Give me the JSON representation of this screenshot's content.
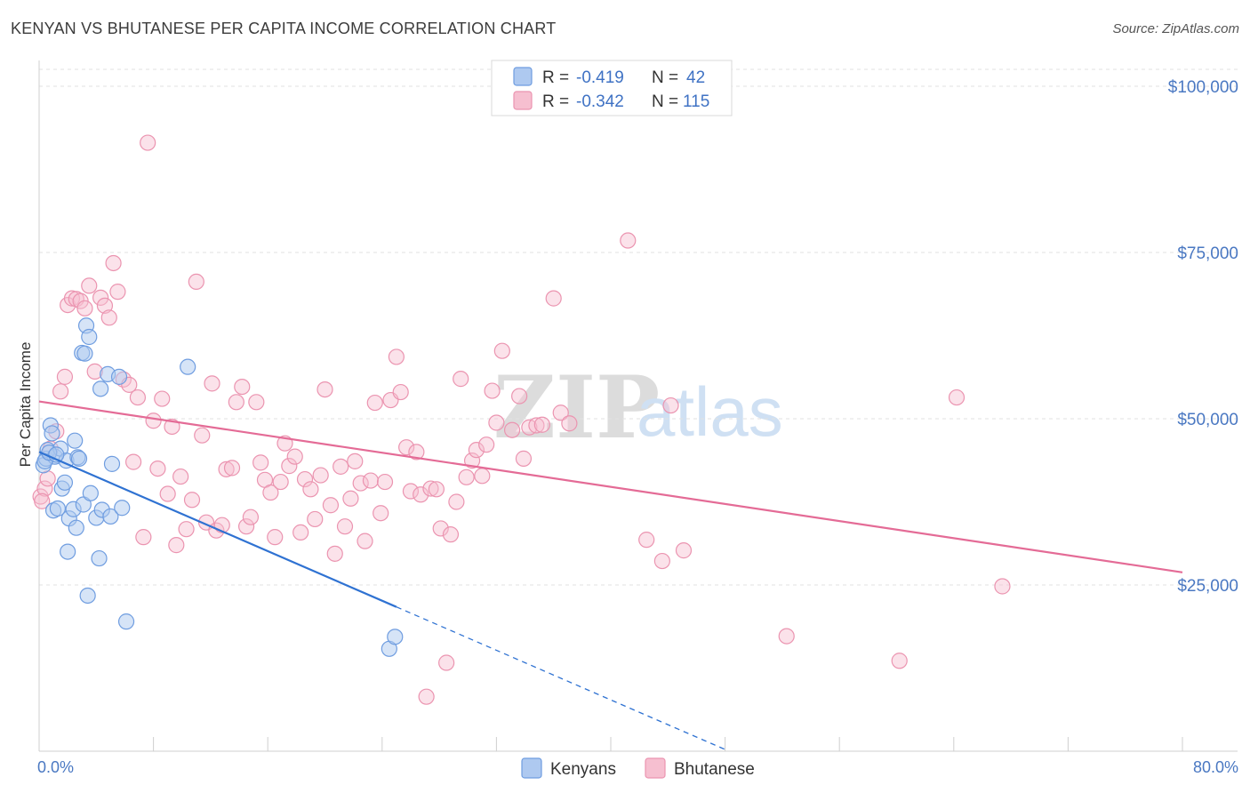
{
  "title": "KENYAN VS BHUTANESE PER CAPITA INCOME CORRELATION CHART",
  "source": "Source: ZipAtlas.com",
  "colors": {
    "kenyans_fill": "#aec9f0",
    "kenyans_stroke": "#6f9de0",
    "kenyans_line": "#2f72d2",
    "bhutanese_fill": "#f6bfd0",
    "bhutanese_stroke": "#eb94b0",
    "bhutanese_line": "#e46b96",
    "tick_text": "#4a78c2"
  },
  "legend": {
    "r_label": "R =",
    "n_label": "N =",
    "kenyans": {
      "r": "-0.419",
      "n": "42"
    },
    "bhutanese": {
      "r": "-0.342",
      "n": "115"
    }
  },
  "bottom_legend": [
    "Kenyans",
    "Bhutanese"
  ],
  "watermark": {
    "zip": "ZIP",
    "atlas": "atlas"
  },
  "chart_data": {
    "type": "scatter",
    "title": "KENYAN VS BHUTANESE PER CAPITA INCOME CORRELATION CHART",
    "xlabel": "",
    "ylabel": "Per Capita Income",
    "xlim": [
      0,
      80
    ],
    "ylim": [
      0,
      105000
    ],
    "x_tick_labels": [
      "0.0%",
      "80.0%"
    ],
    "y_ticks": [
      25000,
      50000,
      75000,
      100000
    ],
    "y_tick_labels": [
      "$25,000",
      "$50,000",
      "$75,000",
      "$100,000"
    ],
    "grid": true,
    "series": [
      {
        "name": "Kenyans",
        "trend": {
          "x0": 0,
          "y0": 45000,
          "x1": 25,
          "y1": 21700,
          "dash_to_x": 48
        },
        "points": [
          [
            0.3,
            43000
          ],
          [
            0.5,
            44000
          ],
          [
            0.6,
            45300
          ],
          [
            0.8,
            49000
          ],
          [
            0.9,
            47800
          ],
          [
            1.0,
            36200
          ],
          [
            1.1,
            44300
          ],
          [
            1.3,
            36500
          ],
          [
            1.5,
            45500
          ],
          [
            1.6,
            39500
          ],
          [
            1.8,
            40400
          ],
          [
            1.9,
            43700
          ],
          [
            2.0,
            30000
          ],
          [
            2.1,
            35000
          ],
          [
            2.4,
            36400
          ],
          [
            2.5,
            46700
          ],
          [
            2.6,
            33600
          ],
          [
            2.7,
            44200
          ],
          [
            2.8,
            44000
          ],
          [
            3.0,
            59900
          ],
          [
            3.1,
            37100
          ],
          [
            3.2,
            59800
          ],
          [
            3.3,
            64000
          ],
          [
            3.4,
            23400
          ],
          [
            3.5,
            62300
          ],
          [
            3.6,
            38800
          ],
          [
            4.0,
            35100
          ],
          [
            4.2,
            29000
          ],
          [
            4.3,
            54500
          ],
          [
            4.4,
            36300
          ],
          [
            4.8,
            56700
          ],
          [
            5.0,
            35300
          ],
          [
            5.1,
            43200
          ],
          [
            5.6,
            56300
          ],
          [
            5.8,
            36600
          ],
          [
            6.1,
            19500
          ],
          [
            10.4,
            57800
          ],
          [
            24.5,
            15400
          ],
          [
            24.9,
            17200
          ],
          [
            0.4,
            43600
          ],
          [
            0.7,
            44900
          ],
          [
            1.2,
            44600
          ]
        ]
      },
      {
        "name": "Bhutanese",
        "trend": {
          "x0": 0,
          "y0": 52600,
          "x1": 80,
          "y1": 26900
        },
        "points": [
          [
            0.1,
            38300
          ],
          [
            0.4,
            39500
          ],
          [
            0.8,
            45500
          ],
          [
            1.2,
            48100
          ],
          [
            1.5,
            54100
          ],
          [
            1.8,
            56300
          ],
          [
            2.0,
            67100
          ],
          [
            2.3,
            68100
          ],
          [
            2.6,
            68000
          ],
          [
            2.9,
            67700
          ],
          [
            3.2,
            66600
          ],
          [
            3.5,
            70000
          ],
          [
            3.9,
            57100
          ],
          [
            4.3,
            68200
          ],
          [
            4.6,
            67000
          ],
          [
            4.9,
            65200
          ],
          [
            5.2,
            73400
          ],
          [
            5.5,
            69100
          ],
          [
            5.9,
            55900
          ],
          [
            6.3,
            55100
          ],
          [
            6.6,
            43500
          ],
          [
            6.9,
            53200
          ],
          [
            7.3,
            32200
          ],
          [
            7.6,
            91500
          ],
          [
            8.0,
            49700
          ],
          [
            8.3,
            42500
          ],
          [
            8.6,
            53000
          ],
          [
            9.0,
            38700
          ],
          [
            9.3,
            48800
          ],
          [
            9.6,
            31000
          ],
          [
            9.9,
            41300
          ],
          [
            10.3,
            33400
          ],
          [
            10.7,
            37800
          ],
          [
            11.0,
            70600
          ],
          [
            11.4,
            47500
          ],
          [
            11.7,
            34400
          ],
          [
            12.1,
            55300
          ],
          [
            12.4,
            33200
          ],
          [
            12.8,
            34000
          ],
          [
            13.1,
            42400
          ],
          [
            13.5,
            42600
          ],
          [
            13.8,
            52500
          ],
          [
            14.2,
            54800
          ],
          [
            14.5,
            33800
          ],
          [
            14.8,
            35200
          ],
          [
            15.2,
            52500
          ],
          [
            15.5,
            43400
          ],
          [
            15.8,
            40800
          ],
          [
            16.2,
            38900
          ],
          [
            16.5,
            32200
          ],
          [
            16.9,
            40500
          ],
          [
            17.2,
            46300
          ],
          [
            17.5,
            42900
          ],
          [
            17.9,
            44300
          ],
          [
            18.3,
            32900
          ],
          [
            18.6,
            40900
          ],
          [
            19.0,
            39400
          ],
          [
            19.3,
            34900
          ],
          [
            19.7,
            41500
          ],
          [
            20.0,
            54400
          ],
          [
            20.4,
            37000
          ],
          [
            20.7,
            29700
          ],
          [
            21.1,
            42800
          ],
          [
            21.4,
            33800
          ],
          [
            21.8,
            38000
          ],
          [
            22.1,
            43600
          ],
          [
            22.5,
            40300
          ],
          [
            22.8,
            31600
          ],
          [
            23.2,
            40700
          ],
          [
            23.5,
            52400
          ],
          [
            23.9,
            35800
          ],
          [
            24.2,
            40500
          ],
          [
            24.6,
            52800
          ],
          [
            25.0,
            59300
          ],
          [
            25.3,
            54000
          ],
          [
            25.7,
            45700
          ],
          [
            26.0,
            39100
          ],
          [
            26.4,
            45000
          ],
          [
            26.7,
            38600
          ],
          [
            27.1,
            8200
          ],
          [
            27.4,
            39500
          ],
          [
            27.8,
            39400
          ],
          [
            28.1,
            33500
          ],
          [
            28.5,
            13300
          ],
          [
            28.8,
            32600
          ],
          [
            29.2,
            37500
          ],
          [
            29.5,
            56000
          ],
          [
            29.9,
            41200
          ],
          [
            30.3,
            43700
          ],
          [
            30.6,
            45300
          ],
          [
            31.0,
            41400
          ],
          [
            31.3,
            46100
          ],
          [
            31.7,
            54200
          ],
          [
            32.0,
            49400
          ],
          [
            32.4,
            60200
          ],
          [
            33.1,
            48300
          ],
          [
            33.6,
            53400
          ],
          [
            33.9,
            44000
          ],
          [
            34.3,
            48700
          ],
          [
            34.8,
            49000
          ],
          [
            35.2,
            49100
          ],
          [
            36.0,
            68100
          ],
          [
            36.5,
            50900
          ],
          [
            37.1,
            49300
          ],
          [
            41.2,
            76800
          ],
          [
            42.5,
            31800
          ],
          [
            43.6,
            28600
          ],
          [
            44.2,
            52000
          ],
          [
            45.1,
            30200
          ],
          [
            52.3,
            17300
          ],
          [
            60.2,
            13600
          ],
          [
            64.2,
            53200
          ],
          [
            67.4,
            24800
          ],
          [
            0.2,
            37600
          ],
          [
            0.6,
            41000
          ]
        ]
      }
    ]
  }
}
